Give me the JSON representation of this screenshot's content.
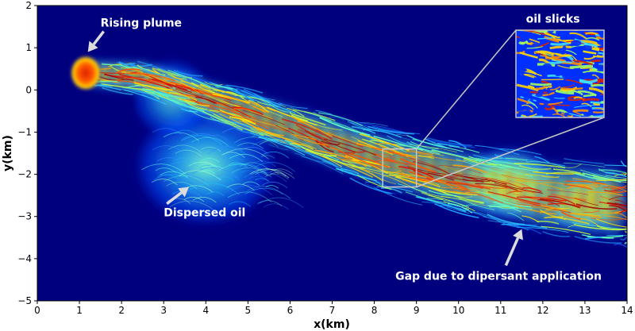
{
  "chart_data": {
    "type": "heatmap",
    "title": "",
    "xlabel": "x(km)",
    "ylabel": "y(km)",
    "xlim": [
      0,
      14
    ],
    "ylim": [
      -5,
      2
    ],
    "xticks": [
      0,
      1,
      2,
      3,
      4,
      5,
      6,
      7,
      8,
      9,
      10,
      11,
      12,
      13,
      14
    ],
    "yticks": [
      2,
      1,
      0,
      -1,
      -2,
      -3,
      -4,
      -5
    ],
    "colormap": "jet",
    "background_color": "#00007f",
    "plume_centerline": [
      {
        "x": 1.1,
        "y": 0.4
      },
      {
        "x": 2.5,
        "y": 0.3
      },
      {
        "x": 4.0,
        "y": -0.2
      },
      {
        "x": 6.0,
        "y": -0.9
      },
      {
        "x": 8.0,
        "y": -1.6
      },
      {
        "x": 10.0,
        "y": -2.1
      },
      {
        "x": 12.0,
        "y": -2.5
      },
      {
        "x": 14.0,
        "y": -2.7
      }
    ],
    "dispersed_region_center": {
      "x": 4.0,
      "y": -1.8
    },
    "inset_source_box": {
      "x0": 8.2,
      "x1": 9.0,
      "y0": -2.3,
      "y1": -1.4
    },
    "annotations": [
      {
        "text": "Rising plume",
        "x": 1.5,
        "y": 1.5,
        "arrow_to": {
          "x": 1.2,
          "y": 0.9
        }
      },
      {
        "text": "Dispersed oil",
        "x": 3.0,
        "y": -3.0,
        "arrow_to": {
          "x": 3.6,
          "y": -2.3
        }
      },
      {
        "text": "Gap due to dipersant application",
        "x": 8.5,
        "y": -4.5,
        "arrow_to": {
          "x": 11.5,
          "y": -3.3
        }
      },
      {
        "text": "oil slicks",
        "x": 11.6,
        "y": 1.6
      }
    ]
  }
}
